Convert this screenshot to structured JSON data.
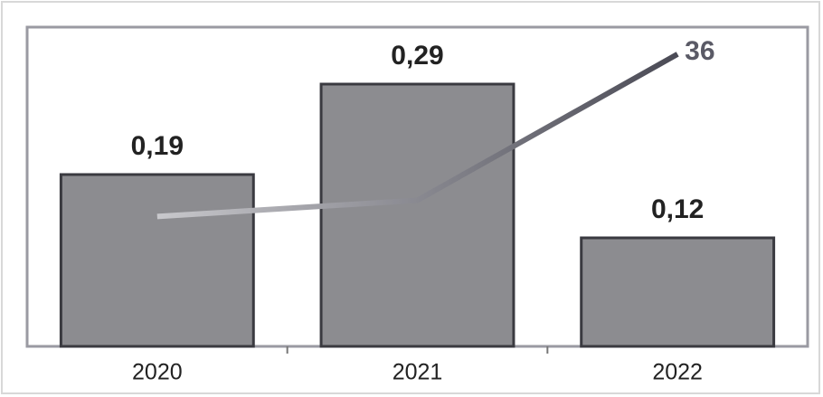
{
  "chart_data": {
    "type": "bar",
    "categories": [
      "2020",
      "2021",
      "2022"
    ],
    "values": [
      0.19,
      0.29,
      0.12
    ],
    "value_labels": [
      "0,19",
      "0,29",
      "0,12"
    ],
    "color": "#8c8c90",
    "edge_color": "#3a3a40",
    "ylim": [
      0,
      0.35
    ],
    "line": {
      "axis": "y2",
      "values": [
        16,
        18,
        36
      ],
      "color": "#c8c8cc",
      "color_end": "#4a4a55",
      "label_last": true
    },
    "y2lim": [
      0,
      39
    ]
  }
}
